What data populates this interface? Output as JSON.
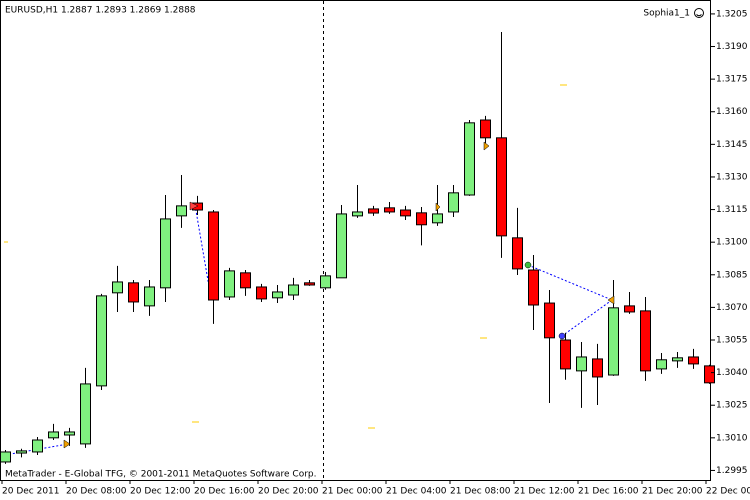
{
  "header": {
    "title": "EURUSD,H1 1.2887 1.2893 1.2869 1.2888",
    "expert": "Sophia1_1",
    "footer": "MetaTrader - E-Global TFG, © 2001-2011 MetaQuotes Software Corp."
  },
  "chart_data": {
    "type": "candlestick",
    "categories": [
      "20 Dec 2011",
      null,
      null,
      null,
      "20 Dec 08:00",
      null,
      null,
      null,
      "20 Dec 12:00",
      null,
      null,
      null,
      "20 Dec 16:00",
      null,
      null,
      null,
      "20 Dec 20:00",
      null,
      null,
      null,
      "21 Dec 00:00",
      null,
      null,
      null,
      "21 Dec 04:00",
      null,
      null,
      null,
      "21 Dec 08:00",
      null,
      null,
      null,
      "21 Dec 12:00",
      null,
      null,
      null,
      "21 Dec 16:00",
      null,
      null,
      null,
      "21 Dec 20:00",
      null,
      null,
      null,
      "22 Dec 00"
    ],
    "open": [
      1.29989,
      1.3003,
      1.30035,
      1.301,
      1.30113,
      1.30072,
      1.30339,
      1.30767,
      1.30813,
      1.30707,
      1.3079,
      1.31121,
      1.3118,
      1.31139,
      1.30748,
      1.30859,
      1.30794,
      1.30744,
      1.30757,
      1.30813,
      1.3079,
      1.30836,
      1.31121,
      1.31153,
      1.31158,
      1.31148,
      1.31135,
      1.31089,
      1.31139,
      1.31217,
      1.31562,
      1.3148,
      1.3102,
      1.30872,
      1.3072,
      1.3055,
      1.30408,
      1.30463,
      1.30389,
      1.30707,
      1.30684,
      1.30417,
      1.30454,
      1.30472,
      1.30431
    ],
    "high": [
      1.30044,
      1.3005,
      1.30104,
      1.30164,
      1.30146,
      1.30422,
      1.30762,
      1.30891,
      1.30826,
      1.30826,
      1.31217,
      1.31309,
      1.31213,
      1.31148,
      1.30882,
      1.30872,
      1.30808,
      1.30803,
      1.30836,
      1.30826,
      1.30863,
      1.31171,
      1.31263,
      1.31167,
      1.31185,
      1.31167,
      1.31162,
      1.31263,
      1.31263,
      1.31562,
      1.31581,
      1.31967,
      1.31158,
      1.30941,
      1.3078,
      1.30583,
      1.30541,
      1.30532,
      1.30826,
      1.30771,
      1.30748,
      1.3049,
      1.30495,
      1.30509,
      1.30436
    ],
    "low": [
      1.2998,
      1.3001,
      1.30021,
      1.3009,
      1.30063,
      1.30054,
      1.3032,
      1.30679,
      1.30679,
      1.30661,
      1.30725,
      1.31066,
      1.31125,
      1.30624,
      1.30734,
      1.30753,
      1.30725,
      1.3072,
      1.30734,
      1.30799,
      1.30781,
      1.30836,
      1.31112,
      1.31121,
      1.3113,
      1.31102,
      1.30985,
      1.31075,
      1.31116,
      1.31213,
      1.31434,
      1.30928,
      1.30849,
      1.30596,
      1.3026,
      1.30367,
      1.30238,
      1.30251,
      1.30385,
      1.3067,
      1.30362,
      1.30394,
      1.30422,
      1.30417,
      1.30348
    ],
    "close": [
      1.30035,
      1.3004,
      1.3009,
      1.30127,
      1.30127,
      1.30348,
      1.30753,
      1.30817,
      1.30725,
      1.30794,
      1.31107,
      1.31167,
      1.31148,
      1.30734,
      1.30868,
      1.3079,
      1.30739,
      1.30771,
      1.30803,
      1.30803,
      1.30845,
      1.3113,
      1.31139,
      1.31134,
      1.31139,
      1.31121,
      1.3108,
      1.3113,
      1.31227,
      1.31549,
      1.3148,
      1.31029,
      1.30877,
      1.30711,
      1.3056,
      1.30417,
      1.30472,
      1.3038,
      1.30698,
      1.30679,
      1.30408,
      1.30459,
      1.30468,
      1.3044,
      1.30353
    ],
    "up_color": "#7ff07f",
    "down_color": "#ff0000",
    "ylim": [
      1.29906,
      1.32114
    ],
    "yticks": [
      1.3205,
      {
        "value": 1.319,
        "label": "1.3190"
      },
      1.3175,
      {
        "value": 1.316,
        "label": "1.3160"
      },
      1.3145,
      {
        "value": 1.313,
        "label": "1.3130"
      },
      1.3115,
      {
        "value": 1.31,
        "label": "1.3100"
      },
      1.3085,
      {
        "value": 1.307,
        "label": "1.3070"
      },
      1.3055,
      {
        "value": 1.304,
        "label": "1.3040"
      },
      1.3025,
      {
        "value": 1.301,
        "label": "1.3010"
      },
      1.2995
    ]
  }
}
